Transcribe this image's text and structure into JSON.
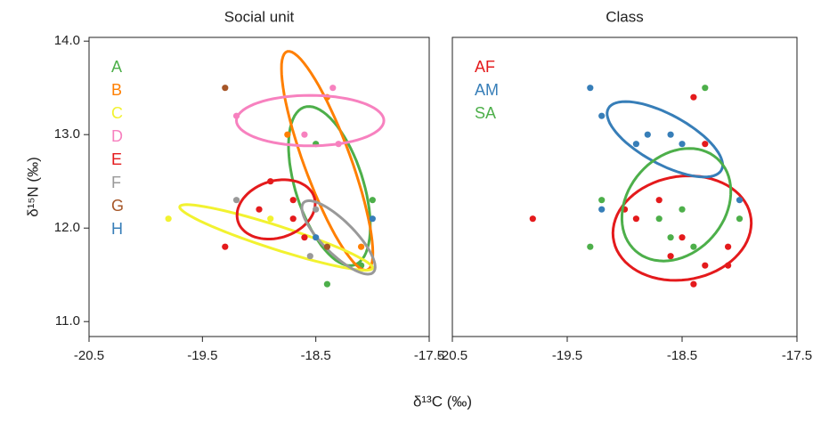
{
  "chart_data": [
    {
      "type": "scatter",
      "title": "Social unit",
      "y_label": "δ¹⁵N (‰)",
      "x_label": "δ¹³C (‰)",
      "xlim": [
        -20.5,
        -17.5
      ],
      "ylim": [
        10.84,
        14.04
      ],
      "xticks": [
        -20.5,
        -19.5,
        -18.5,
        -17.5
      ],
      "yticks": [
        {
          "value": 11,
          "label": "11.0"
        },
        {
          "value": 12,
          "label": "12.0"
        },
        {
          "value": 13,
          "label": "13.0"
        },
        {
          "value": 14,
          "label": "14.0"
        }
      ],
      "series": [
        {
          "name": "A",
          "color": "#4daf4a",
          "x": [
            -18.5,
            -18.0,
            -18.4,
            -18.1
          ],
          "y": [
            12.9,
            12.3,
            11.4,
            11.6
          ],
          "ellipse": {
            "center": [
              -18.38,
              12.45
            ],
            "u": [
              -0.2,
              0.85
            ],
            "v": [
              0.3,
              0.05
            ]
          }
        },
        {
          "name": "B",
          "color": "#ff7f00",
          "x": [
            -18.4,
            -18.75,
            -18.1
          ],
          "y": [
            13.4,
            13.0,
            11.8
          ],
          "ellipse": {
            "center": [
              -18.4,
              12.72
            ],
            "u": [
              -0.35,
              1.17
            ],
            "v": [
              0.2,
              0.06
            ]
          }
        },
        {
          "name": "C",
          "color": "#f2f230",
          "x": [
            -19.8,
            -18.9
          ],
          "y": [
            12.1,
            12.1
          ],
          "ellipse": {
            "center": [
              -18.85,
              11.9
            ],
            "u": [
              0.85,
              -0.33
            ],
            "v": [
              0.03,
              0.12
            ]
          }
        },
        {
          "name": "D",
          "color": "#f781bf",
          "x": [
            -19.2,
            -18.35,
            -18.6,
            -18.3
          ],
          "y": [
            13.2,
            13.5,
            13.0,
            12.9
          ],
          "ellipse": {
            "center": [
              -18.55,
              13.15
            ],
            "u": [
              0.65,
              0
            ],
            "v": [
              0,
              0.27
            ]
          }
        },
        {
          "name": "E",
          "color": "#e41a1c",
          "x": [
            -18.9,
            -19.0,
            -18.7,
            -18.7,
            -18.6,
            -19.3
          ],
          "y": [
            12.5,
            12.2,
            12.3,
            12.1,
            11.9,
            11.8
          ],
          "ellipse": {
            "center": [
              -18.85,
              12.2
            ],
            "u": [
              0.33,
              0.15
            ],
            "v": [
              -0.1,
              0.28
            ]
          }
        },
        {
          "name": "F",
          "color": "#999999",
          "x": [
            -19.2,
            -18.5,
            -18.55
          ],
          "y": [
            12.3,
            12.2,
            11.7
          ],
          "ellipse": {
            "center": [
              -18.3,
              11.9
            ],
            "u": [
              -0.3,
              0.38
            ],
            "v": [
              0.12,
              0.1
            ]
          }
        },
        {
          "name": "G",
          "color": "#a65628",
          "x": [
            -19.3,
            -18.4
          ],
          "y": [
            13.5,
            11.8
          ]
        },
        {
          "name": "H",
          "color": "#377eb8",
          "x": [
            -18.0,
            -18.5
          ],
          "y": [
            12.1,
            11.9
          ]
        }
      ]
    },
    {
      "type": "scatter",
      "title": "Class",
      "xlim": [
        -20.5,
        -17.5
      ],
      "ylim": [
        10.84,
        14.04
      ],
      "xticks": [
        -20.5,
        -19.5,
        -18.5,
        -17.5
      ],
      "series": [
        {
          "name": "AF",
          "color": "#e41a1c",
          "x": [
            -19.8,
            -19.0,
            -18.9,
            -18.7,
            -18.4,
            -18.3,
            -18.5,
            -18.6,
            -18.1,
            -18.3,
            -18.4,
            -18.1
          ],
          "y": [
            12.1,
            12.2,
            12.1,
            12.3,
            13.4,
            12.9,
            11.9,
            11.7,
            11.8,
            11.6,
            11.4,
            11.6
          ],
          "ellipse": {
            "center": [
              -18.5,
              12.0
            ],
            "u": [
              0.6,
              0.1
            ],
            "v": [
              -0.05,
              0.55
            ]
          }
        },
        {
          "name": "AM",
          "color": "#377eb8",
          "x": [
            -19.3,
            -19.2,
            -18.9,
            -18.8,
            -18.6,
            -18.5,
            -19.2,
            -18.0
          ],
          "y": [
            13.5,
            13.2,
            12.9,
            13.0,
            13.0,
            12.9,
            12.2,
            12.3
          ],
          "ellipse": {
            "center": [
              -18.65,
              12.95
            ],
            "u": [
              -0.48,
              0.35
            ],
            "v": [
              0.15,
              0.2
            ]
          }
        },
        {
          "name": "SA",
          "color": "#4daf4a",
          "x": [
            -18.3,
            -19.2,
            -18.7,
            -18.5,
            -18.6,
            -18.4,
            -19.3,
            -18.0
          ],
          "y": [
            13.5,
            12.3,
            12.1,
            12.2,
            11.9,
            11.8,
            11.8,
            12.1
          ],
          "ellipse": {
            "center": [
              -18.55,
              12.25
            ],
            "u": [
              0.15,
              0.6
            ],
            "v": [
              0.45,
              -0.05
            ]
          }
        }
      ]
    }
  ]
}
